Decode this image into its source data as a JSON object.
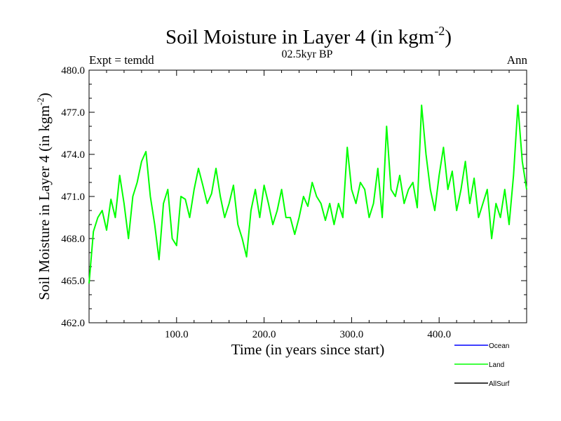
{
  "chart_data": {
    "type": "line",
    "title": "Soil Moisture in Layer 4 (in kgm",
    "title_sup": "-2",
    "title_tail": ")",
    "subtitle": "02.5kyr BP",
    "left_label": "Expt = temdd",
    "right_label": "Ann",
    "xlabel": "Time (in years since start)",
    "ylabel": "Soil Moisture in Layer 4 (in kgm",
    "ylabel_sup": "-2",
    "ylabel_tail": ")",
    "xlim": [
      0,
      500
    ],
    "ylim": [
      462,
      480
    ],
    "x_ticks": [
      100,
      200,
      300,
      400
    ],
    "x_tick_labels": [
      "100.0",
      "200.0",
      "300.0",
      "400.0"
    ],
    "y_ticks": [
      462,
      465,
      468,
      471,
      474,
      477,
      480
    ],
    "y_tick_labels": [
      "462.0",
      "465.0",
      "468.0",
      "471.0",
      "474.0",
      "477.0",
      "480.0"
    ],
    "legend": [
      {
        "name": "Ocean",
        "color": "#0000ff"
      },
      {
        "name": "Land",
        "color": "#00ff00"
      },
      {
        "name": "AllSurf",
        "color": "#000000"
      }
    ],
    "series": [
      {
        "name": "Land",
        "color": "#00ff00",
        "x": [
          0,
          5,
          10,
          15,
          20,
          25,
          30,
          35,
          40,
          45,
          50,
          55,
          60,
          65,
          70,
          75,
          80,
          85,
          90,
          95,
          100,
          105,
          110,
          115,
          120,
          125,
          130,
          135,
          140,
          145,
          150,
          155,
          160,
          165,
          170,
          175,
          180,
          185,
          190,
          195,
          200,
          205,
          210,
          215,
          220,
          225,
          230,
          235,
          240,
          245,
          250,
          255,
          260,
          265,
          270,
          275,
          280,
          285,
          290,
          295,
          300,
          305,
          310,
          315,
          320,
          325,
          330,
          335,
          340,
          345,
          350,
          355,
          360,
          365,
          370,
          375,
          380,
          385,
          390,
          395,
          400,
          405,
          410,
          415,
          420,
          425,
          430,
          435,
          440,
          445,
          450,
          455,
          460,
          465,
          470,
          475,
          480,
          485,
          490,
          495,
          500
        ],
        "values": [
          464.8,
          468.5,
          469.5,
          470,
          468.6,
          470.8,
          469.5,
          472.5,
          470.5,
          468,
          471,
          472,
          473.5,
          474.2,
          471,
          469,
          466.5,
          470.5,
          471.5,
          468,
          467.5,
          471,
          470.8,
          469.5,
          471.5,
          473,
          471.8,
          470.5,
          471.2,
          473,
          471,
          469.5,
          470.5,
          471.8,
          469,
          468,
          466.7,
          470,
          471.5,
          469.5,
          471.8,
          470.5,
          469,
          470,
          471.5,
          469.5,
          469.5,
          468.3,
          469.5,
          471,
          470.3,
          472,
          471,
          470.5,
          469.3,
          470.5,
          469,
          470.5,
          469.5,
          474.5,
          471.5,
          470.5,
          472,
          471.5,
          469.5,
          470.5,
          473,
          469.5,
          476,
          471.5,
          471,
          472.5,
          470.5,
          471.5,
          472,
          470.2,
          477.5,
          474,
          471.5,
          470,
          472.5,
          474.5,
          471.5,
          472.8,
          470,
          471.5,
          473.5,
          470.5,
          472.3,
          469.5,
          470.5,
          471.5,
          468,
          470.5,
          469.5,
          471.5,
          469,
          472.5,
          477.5,
          473.5,
          471.5
        ]
      }
    ]
  }
}
